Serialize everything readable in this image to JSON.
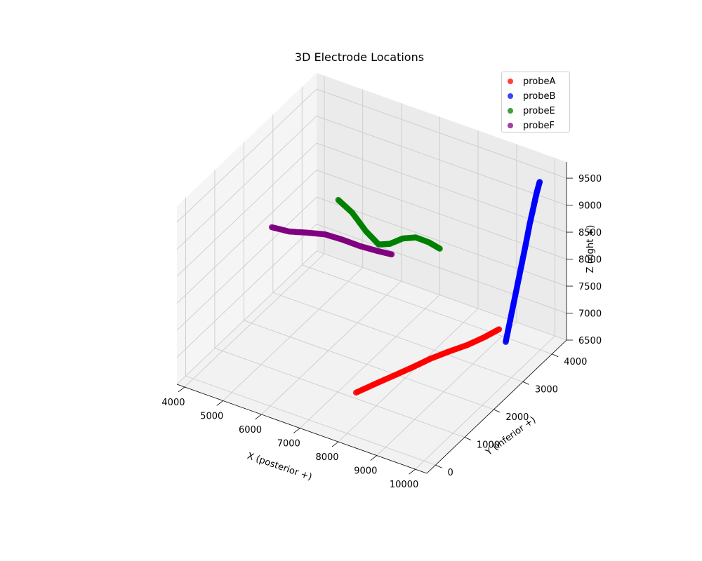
{
  "chart_data": {
    "type": "scatter",
    "projection": "3d",
    "title": "3D Electrode Locations",
    "xlabel": "X (posterior +)",
    "ylabel": "Y (inferior +)",
    "zlabel": "Z (right +)",
    "xlim": [
      3800,
      10300
    ],
    "ylim": [
      -300,
      4500
    ],
    "zlim": [
      6500,
      9800
    ],
    "xticks": [
      "4000",
      "5000",
      "6000",
      "7000",
      "8000",
      "9000",
      "10000"
    ],
    "yticks": [
      "0",
      "1000",
      "2000",
      "3000",
      "4000"
    ],
    "zticks": [
      "6500",
      "7000",
      "7500",
      "8000",
      "8500",
      "9000",
      "9500"
    ],
    "grid": true,
    "legend_position": "top-right",
    "series": [
      {
        "name": "probeA",
        "color": "#ff0000",
        "x": [
          7400,
          7620,
          7850,
          8050,
          8200,
          8420,
          8650,
          8850,
          9000
        ],
        "y": [
          1100,
          1500,
          1900,
          2250,
          2600,
          2950,
          3280,
          3600,
          3900
        ],
        "z": [
          6540,
          6560,
          6580,
          6600,
          6600,
          6610,
          6620,
          6650,
          6680
        ]
      },
      {
        "name": "probeB",
        "color": "#0000ff",
        "x": [
          9400,
          9460,
          9520,
          9580,
          9640,
          9700,
          9760,
          9820,
          9870,
          9920
        ],
        "y": [
          3600,
          3660,
          3720,
          3780,
          3840,
          3900,
          3950,
          4000,
          4040,
          4080
        ],
        "z": [
          6700,
          7050,
          7400,
          7750,
          8100,
          8450,
          8800,
          9100,
          9350,
          9550
        ]
      },
      {
        "name": "probeE",
        "color": "#008000",
        "x": [
          5500,
          5800,
          6100,
          6400,
          6650,
          6950,
          7250,
          7550,
          7800
        ],
        "y": [
          3000,
          3080,
          3150,
          3200,
          3250,
          3300,
          3350,
          3400,
          3450
        ],
        "z": [
          8650,
          8450,
          8150,
          7950,
          8000,
          8150,
          8220,
          8180,
          8100
        ]
      },
      {
        "name": "probeF",
        "color": "#800080",
        "x": [
          4300,
          4700,
          5100,
          5500,
          5900,
          6300,
          6700,
          7000
        ],
        "y": [
          2300,
          2380,
          2460,
          2540,
          2620,
          2700,
          2780,
          2850
        ],
        "z": [
          8200,
          8180,
          8220,
          8250,
          8210,
          8150,
          8120,
          8100
        ]
      }
    ]
  }
}
